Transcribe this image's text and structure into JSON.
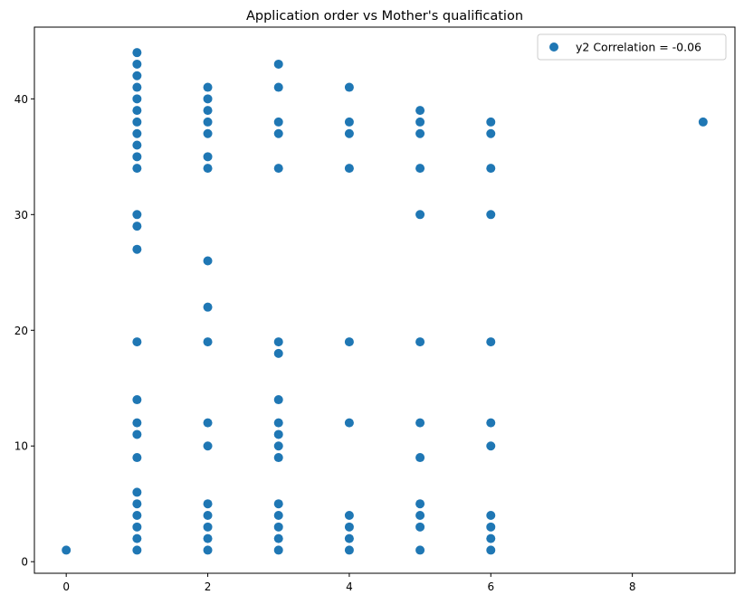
{
  "chart_data": {
    "type": "scatter",
    "title": "Application order vs Mother's qualification",
    "xlabel": "",
    "ylabel": "",
    "xlim": [
      -0.45,
      9.45
    ],
    "ylim": [
      -1.0,
      46.2
    ],
    "xticks": [
      0,
      2,
      4,
      6,
      8
    ],
    "yticks": [
      0,
      10,
      20,
      30,
      40
    ],
    "grid": false,
    "legend_position": "upper-right",
    "marker_color": "#1f77b4",
    "series": [
      {
        "name": "y2 Correlation = -0.06",
        "points": [
          [
            0,
            1
          ],
          [
            1,
            1
          ],
          [
            1,
            2
          ],
          [
            1,
            3
          ],
          [
            1,
            4
          ],
          [
            1,
            5
          ],
          [
            1,
            6
          ],
          [
            1,
            9
          ],
          [
            1,
            11
          ],
          [
            1,
            12
          ],
          [
            1,
            14
          ],
          [
            1,
            19
          ],
          [
            1,
            27
          ],
          [
            1,
            29
          ],
          [
            1,
            30
          ],
          [
            1,
            34
          ],
          [
            1,
            35
          ],
          [
            1,
            36
          ],
          [
            1,
            37
          ],
          [
            1,
            38
          ],
          [
            1,
            39
          ],
          [
            1,
            40
          ],
          [
            1,
            41
          ],
          [
            1,
            42
          ],
          [
            1,
            43
          ],
          [
            1,
            44
          ],
          [
            2,
            1
          ],
          [
            2,
            2
          ],
          [
            2,
            3
          ],
          [
            2,
            4
          ],
          [
            2,
            5
          ],
          [
            2,
            10
          ],
          [
            2,
            12
          ],
          [
            2,
            19
          ],
          [
            2,
            22
          ],
          [
            2,
            26
          ],
          [
            2,
            34
          ],
          [
            2,
            35
          ],
          [
            2,
            37
          ],
          [
            2,
            38
          ],
          [
            2,
            39
          ],
          [
            2,
            40
          ],
          [
            2,
            41
          ],
          [
            3,
            1
          ],
          [
            3,
            2
          ],
          [
            3,
            3
          ],
          [
            3,
            4
          ],
          [
            3,
            5
          ],
          [
            3,
            9
          ],
          [
            3,
            10
          ],
          [
            3,
            11
          ],
          [
            3,
            12
          ],
          [
            3,
            14
          ],
          [
            3,
            18
          ],
          [
            3,
            19
          ],
          [
            3,
            34
          ],
          [
            3,
            37
          ],
          [
            3,
            38
          ],
          [
            3,
            41
          ],
          [
            3,
            43
          ],
          [
            4,
            1
          ],
          [
            4,
            2
          ],
          [
            4,
            3
          ],
          [
            4,
            4
          ],
          [
            4,
            12
          ],
          [
            4,
            19
          ],
          [
            4,
            34
          ],
          [
            4,
            37
          ],
          [
            4,
            38
          ],
          [
            4,
            41
          ],
          [
            5,
            1
          ],
          [
            5,
            3
          ],
          [
            5,
            4
          ],
          [
            5,
            5
          ],
          [
            5,
            9
          ],
          [
            5,
            12
          ],
          [
            5,
            19
          ],
          [
            5,
            30
          ],
          [
            5,
            34
          ],
          [
            5,
            37
          ],
          [
            5,
            38
          ],
          [
            5,
            39
          ],
          [
            6,
            1
          ],
          [
            6,
            2
          ],
          [
            6,
            3
          ],
          [
            6,
            4
          ],
          [
            6,
            10
          ],
          [
            6,
            12
          ],
          [
            6,
            19
          ],
          [
            6,
            30
          ],
          [
            6,
            34
          ],
          [
            6,
            37
          ],
          [
            6,
            38
          ],
          [
            9,
            38
          ]
        ]
      }
    ]
  }
}
